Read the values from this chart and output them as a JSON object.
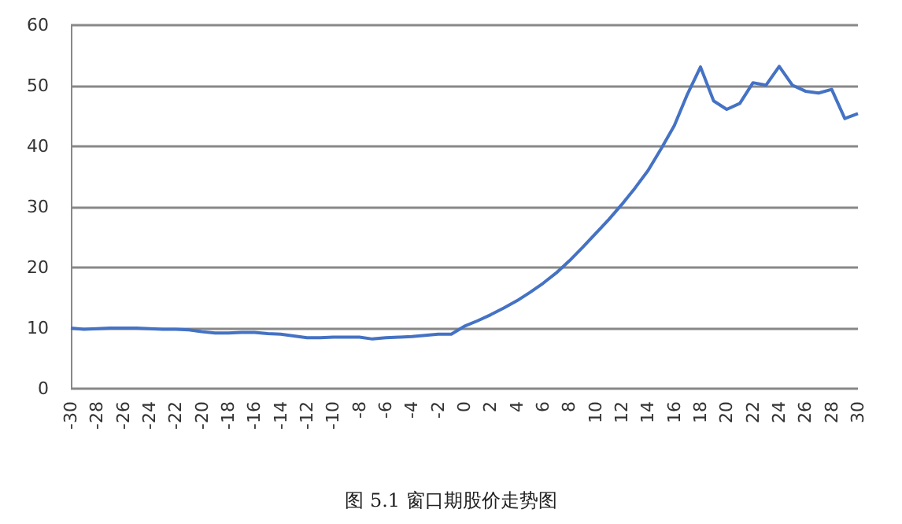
{
  "chart_data": {
    "type": "line",
    "title": "图 5.1 窗口期股价走势图",
    "categories": [
      "-30",
      null,
      "-28",
      null,
      "-26",
      null,
      "-24",
      null,
      "-22",
      null,
      "-20",
      null,
      "-18",
      null,
      "-16",
      null,
      "-14",
      null,
      "-12",
      null,
      "-10",
      null,
      "-8",
      null,
      "-6",
      null,
      "-4",
      null,
      "-2",
      null,
      "0",
      null,
      "2",
      null,
      "4",
      null,
      "6",
      null,
      "8",
      null,
      "10",
      null,
      "12",
      null,
      "14",
      null,
      "16",
      null,
      "18",
      null,
      "20",
      null,
      "22",
      null,
      "24",
      null,
      "26",
      null,
      "28",
      null,
      "30"
    ],
    "series": [
      {
        "color": "#4472c4",
        "values": [
          10.0,
          9.8,
          9.9,
          10.0,
          10.0,
          10.0,
          9.9,
          9.8,
          9.8,
          9.7,
          9.4,
          9.2,
          9.2,
          9.3,
          9.3,
          9.1,
          9.0,
          8.7,
          8.4,
          8.4,
          8.5,
          8.5,
          8.5,
          8.2,
          8.4,
          8.5,
          8.6,
          8.8,
          9.0,
          9.0,
          10.3,
          11.2,
          12.2,
          13.3,
          14.5,
          15.9,
          17.4,
          19.1,
          21.1,
          23.3,
          25.6,
          27.9,
          30.4,
          33.1,
          36.0,
          39.6,
          43.4,
          48.6,
          53.1,
          47.5,
          46.1,
          47.1,
          50.5,
          50.1,
          53.2,
          50.1,
          49.1,
          48.8,
          49.4,
          44.6,
          45.4
        ]
      }
    ],
    "ylim": [
      0,
      60
    ],
    "yticks": [
      0,
      10,
      20,
      30,
      40,
      50,
      60
    ],
    "grid": "y",
    "marker": "none",
    "line_style": "solid"
  }
}
